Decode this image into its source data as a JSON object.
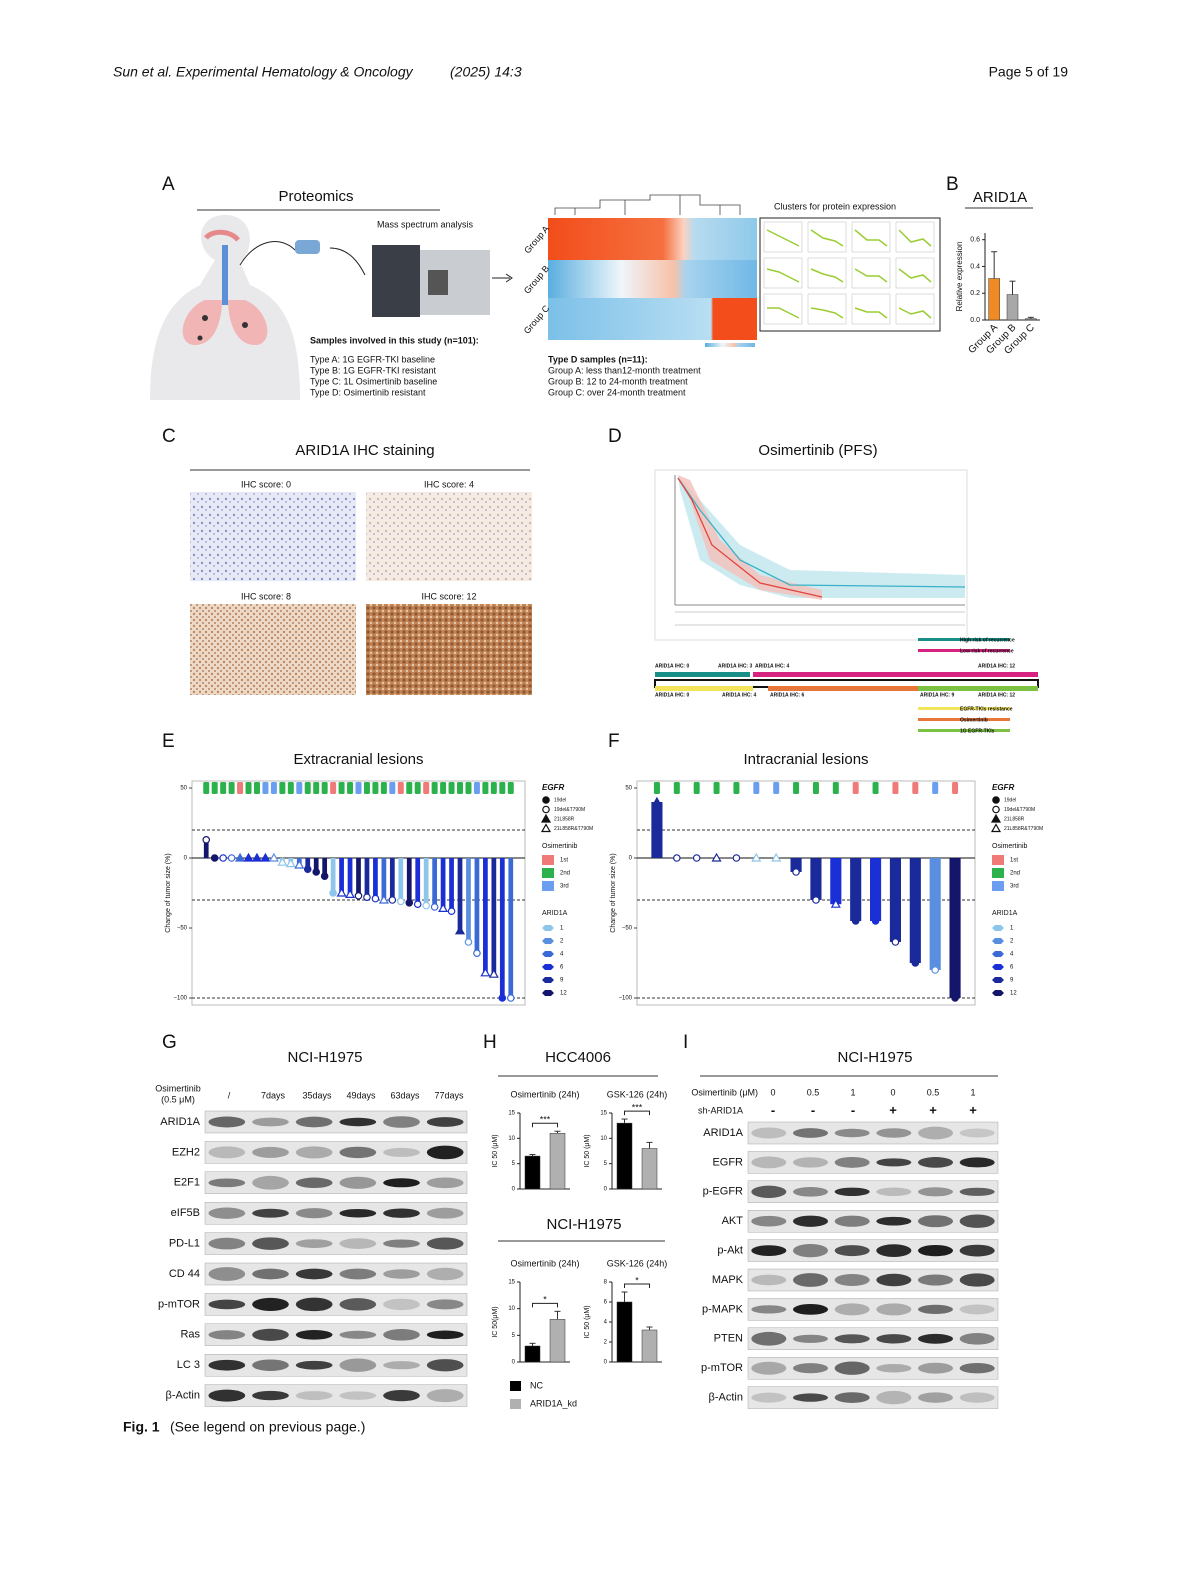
{
  "header": {
    "journal": "Sun et al. Experimental Hematology & Oncology",
    "year": "(2025) 14:3",
    "page": "Page 5 of 19"
  },
  "panels": {
    "A": {
      "label": "A",
      "title": "Proteomics",
      "mass": "Mass spectrum analysis",
      "samples_title": "Samples involved in this study (n=101):",
      "samples": [
        "Type A: 1G EGFR-TKI baseline",
        "Type B: 1G EGFR-TKI resistant",
        "Type C: 1L Osimertinib baseline",
        "Type D: Osimertinib resistant"
      ],
      "groups": [
        "Group A",
        "Group B",
        "Group C"
      ],
      "clusters_title": "Clusters for protein expression",
      "typeD_title": "Type D samples (n=11):",
      "typeD": [
        "Group A: less than12-month treatment",
        "Group B: 12 to 24-month treatment",
        "Group C: over 24-month treatment"
      ]
    },
    "B": {
      "label": "B",
      "title": "ARID1A"
    },
    "C": {
      "label": "C",
      "title": "ARID1A IHC staining",
      "scores": [
        "IHC score: 0",
        "IHC score: 4",
        "IHC score: 8",
        "IHC score: 12"
      ]
    },
    "D": {
      "label": "D",
      "title": "Osimertinib (PFS)",
      "risk": [
        "High risk of recurrence",
        "Low risk of recurrence"
      ],
      "timeline_top": [
        "ARID1A IHC: 0",
        "ARID1A IHC: 3",
        "ARID1A IHC: 4",
        "ARID1A IHC: 12"
      ],
      "timeline_bottom": [
        "ARID1A IHC: 0",
        "ARID1A IHC: 4",
        "ARID1A IHC: 6",
        "ARID1A IHC: 9",
        "ARID1A IHC: 12"
      ],
      "legend": [
        "EGFR-TKIs resistance",
        "Osimertinib",
        "1G EGFR-TKIs"
      ]
    },
    "E": {
      "label": "E"
    },
    "F": {
      "label": "F"
    },
    "G": {
      "label": "G",
      "title": "NCI-H1975",
      "treatment": "Osimertinib",
      "dose": "(0.5 μM)",
      "times": [
        "/",
        "7days",
        "35days",
        "49days",
        "63days",
        "77days"
      ],
      "proteins": [
        "ARID1A",
        "EZH2",
        "E2F1",
        "eIF5B",
        "PD-L1",
        "CD 44",
        "p-mTOR",
        "Ras",
        "LC 3",
        "β-Actin"
      ]
    },
    "H": {
      "label": "H",
      "title1": "HCC4006",
      "title2": "NCI-H1975",
      "legend": [
        "NC",
        "ARID1A_kd"
      ],
      "legend_colors": [
        "#000000",
        "#b0b0b0"
      ]
    },
    "I": {
      "label": "I",
      "title": "NCI-H1975",
      "dose_label": "Osimertinib (μM)",
      "doses": [
        "0",
        "0.5",
        "1",
        "0",
        "0.5",
        "1"
      ],
      "sh_label": "sh-ARID1A",
      "sh": [
        "-",
        "-",
        "-",
        "+",
        "+",
        "+"
      ],
      "proteins": [
        "ARID1A",
        "EGFR",
        "p-EGFR",
        "AKT",
        "p-Akt",
        "MAPK",
        "p-MAPK",
        "PTEN",
        "p-mTOR",
        "β-Actin"
      ]
    }
  },
  "caption": {
    "fig": "Fig. 1",
    "text": "(See legend on previous page.)"
  },
  "chart_data": [
    {
      "type": "bar",
      "ylabel": "Relative expression",
      "categories": [
        "Group A",
        "Group B",
        "Group C"
      ],
      "values": [
        0.31,
        0.19,
        0.01
      ],
      "errors": [
        0.2,
        0.1,
        0.01
      ],
      "colors": [
        "#f08a24",
        "#a8a8a8",
        "#888888"
      ],
      "ylim": [
        0,
        0.65
      ],
      "yticks": [
        {
          "value": 0,
          "label": "0.0"
        },
        0.2,
        0.4,
        0.6
      ]
    },
    {
      "type": "waterfall",
      "title": "Extracranial lesions",
      "ylabel": "Change of tumor size (%)",
      "ylim": [
        -105,
        55
      ],
      "yticks": [
        {
          "value": -100,
          "label": "−100"
        },
        {
          "value": -50,
          "label": "−50"
        },
        0,
        50
      ],
      "thresholds": [
        20,
        -30,
        -100
      ],
      "values": [
        13,
        0,
        0,
        0,
        0,
        0,
        0,
        0,
        0,
        -3,
        -4,
        -5,
        -8,
        -10,
        -13,
        -25,
        -25,
        -26,
        -27,
        -28,
        -29,
        -30,
        -30,
        -31,
        -32,
        -33,
        -34,
        -35,
        -36,
        -38,
        -52,
        -60,
        -68,
        -82,
        -83,
        -100,
        -100
      ],
      "colors": [
        "#14166b",
        "#14166b",
        "#1a2fd6",
        "#3b6ad6",
        "#3b6ad6",
        "#1a2fd6",
        "#1a2fd6",
        "#1a2fd6",
        "#5a8fe0",
        "#8ec5ea",
        "#8ec5ea",
        "#3b6ad6",
        "#1a2a9a",
        "#14166b",
        "#14166b",
        "#8ec5ea",
        "#1a2fd6",
        "#1a2fd6",
        "#14166b",
        "#1a2a9a",
        "#1a2fd6",
        "#3b6ad6",
        "#1a2a9a",
        "#8ec5ea",
        "#14166b",
        "#1a2fd6",
        "#8ec5ea",
        "#3b6ad6",
        "#1a2fd6",
        "#1a2fd6",
        "#1a2a9a",
        "#5a8fe0",
        "#3b6ad6",
        "#1a2fd6",
        "#1a2a9a",
        "#1a2fd6",
        "#3b6ad6"
      ],
      "egfr": [
        "19del&T790M",
        "19del",
        "19del&T790M",
        "19del&T790M",
        "21L858R",
        "21L858R",
        "21L858R",
        "21L858R",
        "21L858R&T790M",
        "21L858R&T790M",
        "21L858R&T790M",
        "21L858R&T790M",
        "19del",
        "19del",
        "19del",
        "19del",
        "21L858R&T790M",
        "21L858R&T790M",
        "19del&T790M",
        "19del&T790M",
        "19del&T790M",
        "21L858R&T790M",
        "19del&T790M",
        "19del&T790M",
        "19del",
        "19del&T790M",
        "19del&T790M",
        "19del&T790M",
        "21L858R&T790M",
        "19del&T790M",
        "21L858R",
        "19del&T790M",
        "19del&T790M",
        "21L858R&T790M",
        "21L858R&T790M",
        "19del",
        "19del&T790M"
      ],
      "top_colors": [
        "#2bb24c",
        "#2bb24c",
        "#2bb24c",
        "#2bb24c",
        "#f07a78",
        "#2bb24c",
        "#2bb24c",
        "#6b9ef0",
        "#6b9ef0",
        "#2bb24c",
        "#2bb24c",
        "#6b9ef0",
        "#2bb24c",
        "#2bb24c",
        "#2bb24c",
        "#f07a78",
        "#2bb24c",
        "#2bb24c",
        "#6b9ef0",
        "#2bb24c",
        "#2bb24c",
        "#2bb24c",
        "#6b9ef0",
        "#f07a78",
        "#2bb24c",
        "#2bb24c",
        "#f07a78",
        "#2bb24c",
        "#2bb24c",
        "#2bb24c",
        "#2bb24c",
        "#2bb24c",
        "#6b9ef0",
        "#2bb24c",
        "#2bb24c",
        "#2bb24c",
        "#2bb24c"
      ],
      "legend": {
        "egfr_title": "EGFR",
        "egfr": [
          "19del",
          "19del&T790M",
          "21L858R",
          "21L858R&T790M"
        ],
        "osi_title": "Osimertinib",
        "osi": [
          "1st",
          "2nd",
          "3rd"
        ],
        "osi_colors": [
          "#f07a78",
          "#2bb24c",
          "#6b9ef0"
        ],
        "arid_title": "ARID1A",
        "arid": [
          1,
          2,
          4,
          6,
          9,
          12
        ],
        "arid_colors": [
          "#8ec5ea",
          "#5a8fe0",
          "#3b6ad6",
          "#1a2fd6",
          "#1a2a9a",
          "#14166b"
        ]
      }
    },
    {
      "type": "waterfall",
      "title": "Intracranial lesions",
      "ylabel": "Change of tumor size (%)",
      "ylim": [
        -105,
        55
      ],
      "yticks": [
        {
          "value": -100,
          "label": "−100"
        },
        {
          "value": -50,
          "label": "−50"
        },
        0,
        50
      ],
      "thresholds": [
        20,
        -30,
        -100
      ],
      "values": [
        40,
        0,
        0,
        0,
        0,
        0,
        0,
        -10,
        -30,
        -33,
        -45,
        -45,
        -60,
        -75,
        -80,
        -100
      ],
      "colors": [
        "#1a2a9a",
        "#1a2a9a",
        "#1a2a9a",
        "#1a2a9a",
        "#1a2a9a",
        "#8ec5ea",
        "#8ec5ea",
        "#1a2a9a",
        "#1a2a9a",
        "#1a2fd6",
        "#1a2a9a",
        "#1a2fd6",
        "#1a2a9a",
        "#1a2a9a",
        "#5a8fe0",
        "#14166b"
      ],
      "egfr": [
        "21L858R",
        "19del&T790M",
        "19del&T790M",
        "21L858R&T790M",
        "19del&T790M",
        "21L858R&T790M",
        "21L858R&T790M",
        "19del&T790M",
        "19del&T790M",
        "21L858R&T790M",
        "19del",
        "19del",
        "19del&T790M",
        "19del",
        "19del&T790M",
        "19del"
      ],
      "top_colors": [
        "#2bb24c",
        "#2bb24c",
        "#2bb24c",
        "#2bb24c",
        "#2bb24c",
        "#6b9ef0",
        "#6b9ef0",
        "#2bb24c",
        "#2bb24c",
        "#2bb24c",
        "#f07a78",
        "#2bb24c",
        "#f07a78",
        "#f07a78",
        "#6b9ef0",
        "#f07a78"
      ],
      "legend": {
        "egfr_title": "EGFR",
        "egfr": [
          "19del",
          "19del&T790M",
          "21L858R",
          "21L858R&T790M"
        ],
        "osi_title": "Osimertinib",
        "osi": [
          "1st",
          "2nd",
          "3rd"
        ],
        "osi_colors": [
          "#f07a78",
          "#2bb24c",
          "#6b9ef0"
        ],
        "arid_title": "ARID1A",
        "arid": [
          1,
          2,
          4,
          6,
          9,
          12
        ],
        "arid_colors": [
          "#8ec5ea",
          "#5a8fe0",
          "#3b6ad6",
          "#1a2fd6",
          "#1a2a9a",
          "#14166b"
        ]
      }
    },
    {
      "type": "bar",
      "title": "Osimertinib (24h)",
      "ylabel": "IC 50 (μM)",
      "values": [
        6.5,
        11
      ],
      "errors": [
        0.3,
        0.4
      ],
      "colors": [
        "#000000",
        "#b0b0b0"
      ],
      "significance": "***",
      "ylim": [
        0,
        15
      ],
      "yticks": [
        0,
        5,
        10,
        15
      ]
    },
    {
      "type": "bar",
      "title": "GSK-126 (24h)",
      "ylabel": "IC 50 (μM)",
      "values": [
        13,
        8
      ],
      "errors": [
        0.8,
        1.2
      ],
      "colors": [
        "#000000",
        "#b0b0b0"
      ],
      "significance": "***",
      "ylim": [
        0,
        15
      ],
      "yticks": [
        0,
        5,
        10,
        15
      ]
    },
    {
      "type": "bar",
      "title": "Osimertinib (24h)",
      "ylabel": "IC 50(μM)",
      "values": [
        3,
        8
      ],
      "errors": [
        0.5,
        1.5
      ],
      "colors": [
        "#000000",
        "#b0b0b0"
      ],
      "significance": "*",
      "ylim": [
        0,
        15
      ],
      "yticks": [
        0,
        5,
        10,
        15
      ]
    },
    {
      "type": "bar",
      "title": "GSK-126 (24h)",
      "ylabel": "IC 50 (μM)",
      "values": [
        6,
        3.2
      ],
      "errors": [
        1,
        0.3
      ],
      "colors": [
        "#000000",
        "#b0b0b0"
      ],
      "significance": "*",
      "ylim": [
        0,
        8
      ],
      "yticks": [
        0,
        2,
        4,
        6,
        8
      ]
    }
  ]
}
